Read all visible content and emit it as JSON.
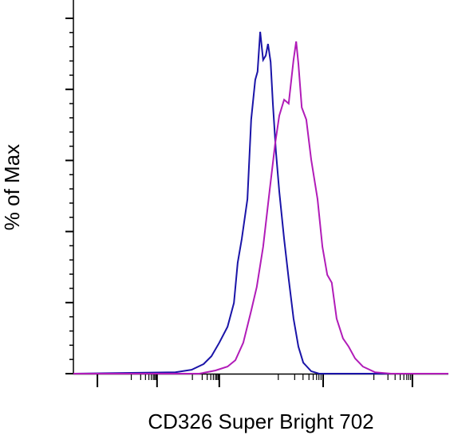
{
  "chart_data": {
    "type": "line",
    "xlabel": "CD326 Super Bright 702",
    "ylabel": "% of Max",
    "xlim": [
      0,
      100
    ],
    "xticks": [
      6.4,
      22.3,
      38.9,
      66.6,
      90.4
    ],
    "ylim": [
      0,
      105
    ],
    "yticks": [
      0,
      20,
      40,
      60,
      80,
      100
    ],
    "series": [
      {
        "color": "#1a14a8",
        "x": [
          0,
          27.2,
          31.5,
          34.7,
          36.8,
          38.9,
          41.1,
          42.8,
          43.8,
          44.9,
          46.4,
          47.4,
          48.5,
          49.1,
          49.8,
          50.6,
          51.3,
          51.9,
          52.6,
          53.2,
          54.0,
          54.9,
          56.2,
          57.4,
          58.7,
          60.0,
          61.3,
          63.4,
          65.5,
          100
        ],
        "values": [
          0,
          0.4,
          1.1,
          2.7,
          4.9,
          8.7,
          13.2,
          19.9,
          31.2,
          37.9,
          49.1,
          71.5,
          82.7,
          85.0,
          96.2,
          88.3,
          89.5,
          92.8,
          87.7,
          76.0,
          62.6,
          51.3,
          37.9,
          26.7,
          15.5,
          7.6,
          3.1,
          0.7,
          0,
          0
        ]
      },
      {
        "color": "#b11cb8",
        "x": [
          0,
          33.6,
          37.9,
          41.1,
          43.2,
          45.3,
          47.4,
          48.9,
          50.6,
          52.3,
          53.8,
          54.9,
          56.2,
          57.4,
          58.7,
          59.4,
          60.0,
          60.9,
          62.1,
          63.4,
          65.1,
          66.4,
          67.7,
          68.9,
          70.2,
          71.9,
          73.4,
          75.1,
          77.2,
          80.4,
          84.7,
          100
        ],
        "values": [
          0,
          0,
          0.9,
          2.0,
          3.8,
          8.7,
          17.7,
          24.4,
          35.7,
          51.3,
          64.8,
          72.6,
          77.1,
          76.0,
          88.3,
          93.5,
          87.2,
          74.9,
          71.5,
          60.3,
          49.1,
          35.7,
          27.8,
          25.6,
          15.5,
          9.9,
          7.6,
          4.3,
          2.0,
          0.4,
          0,
          0
        ]
      }
    ]
  }
}
